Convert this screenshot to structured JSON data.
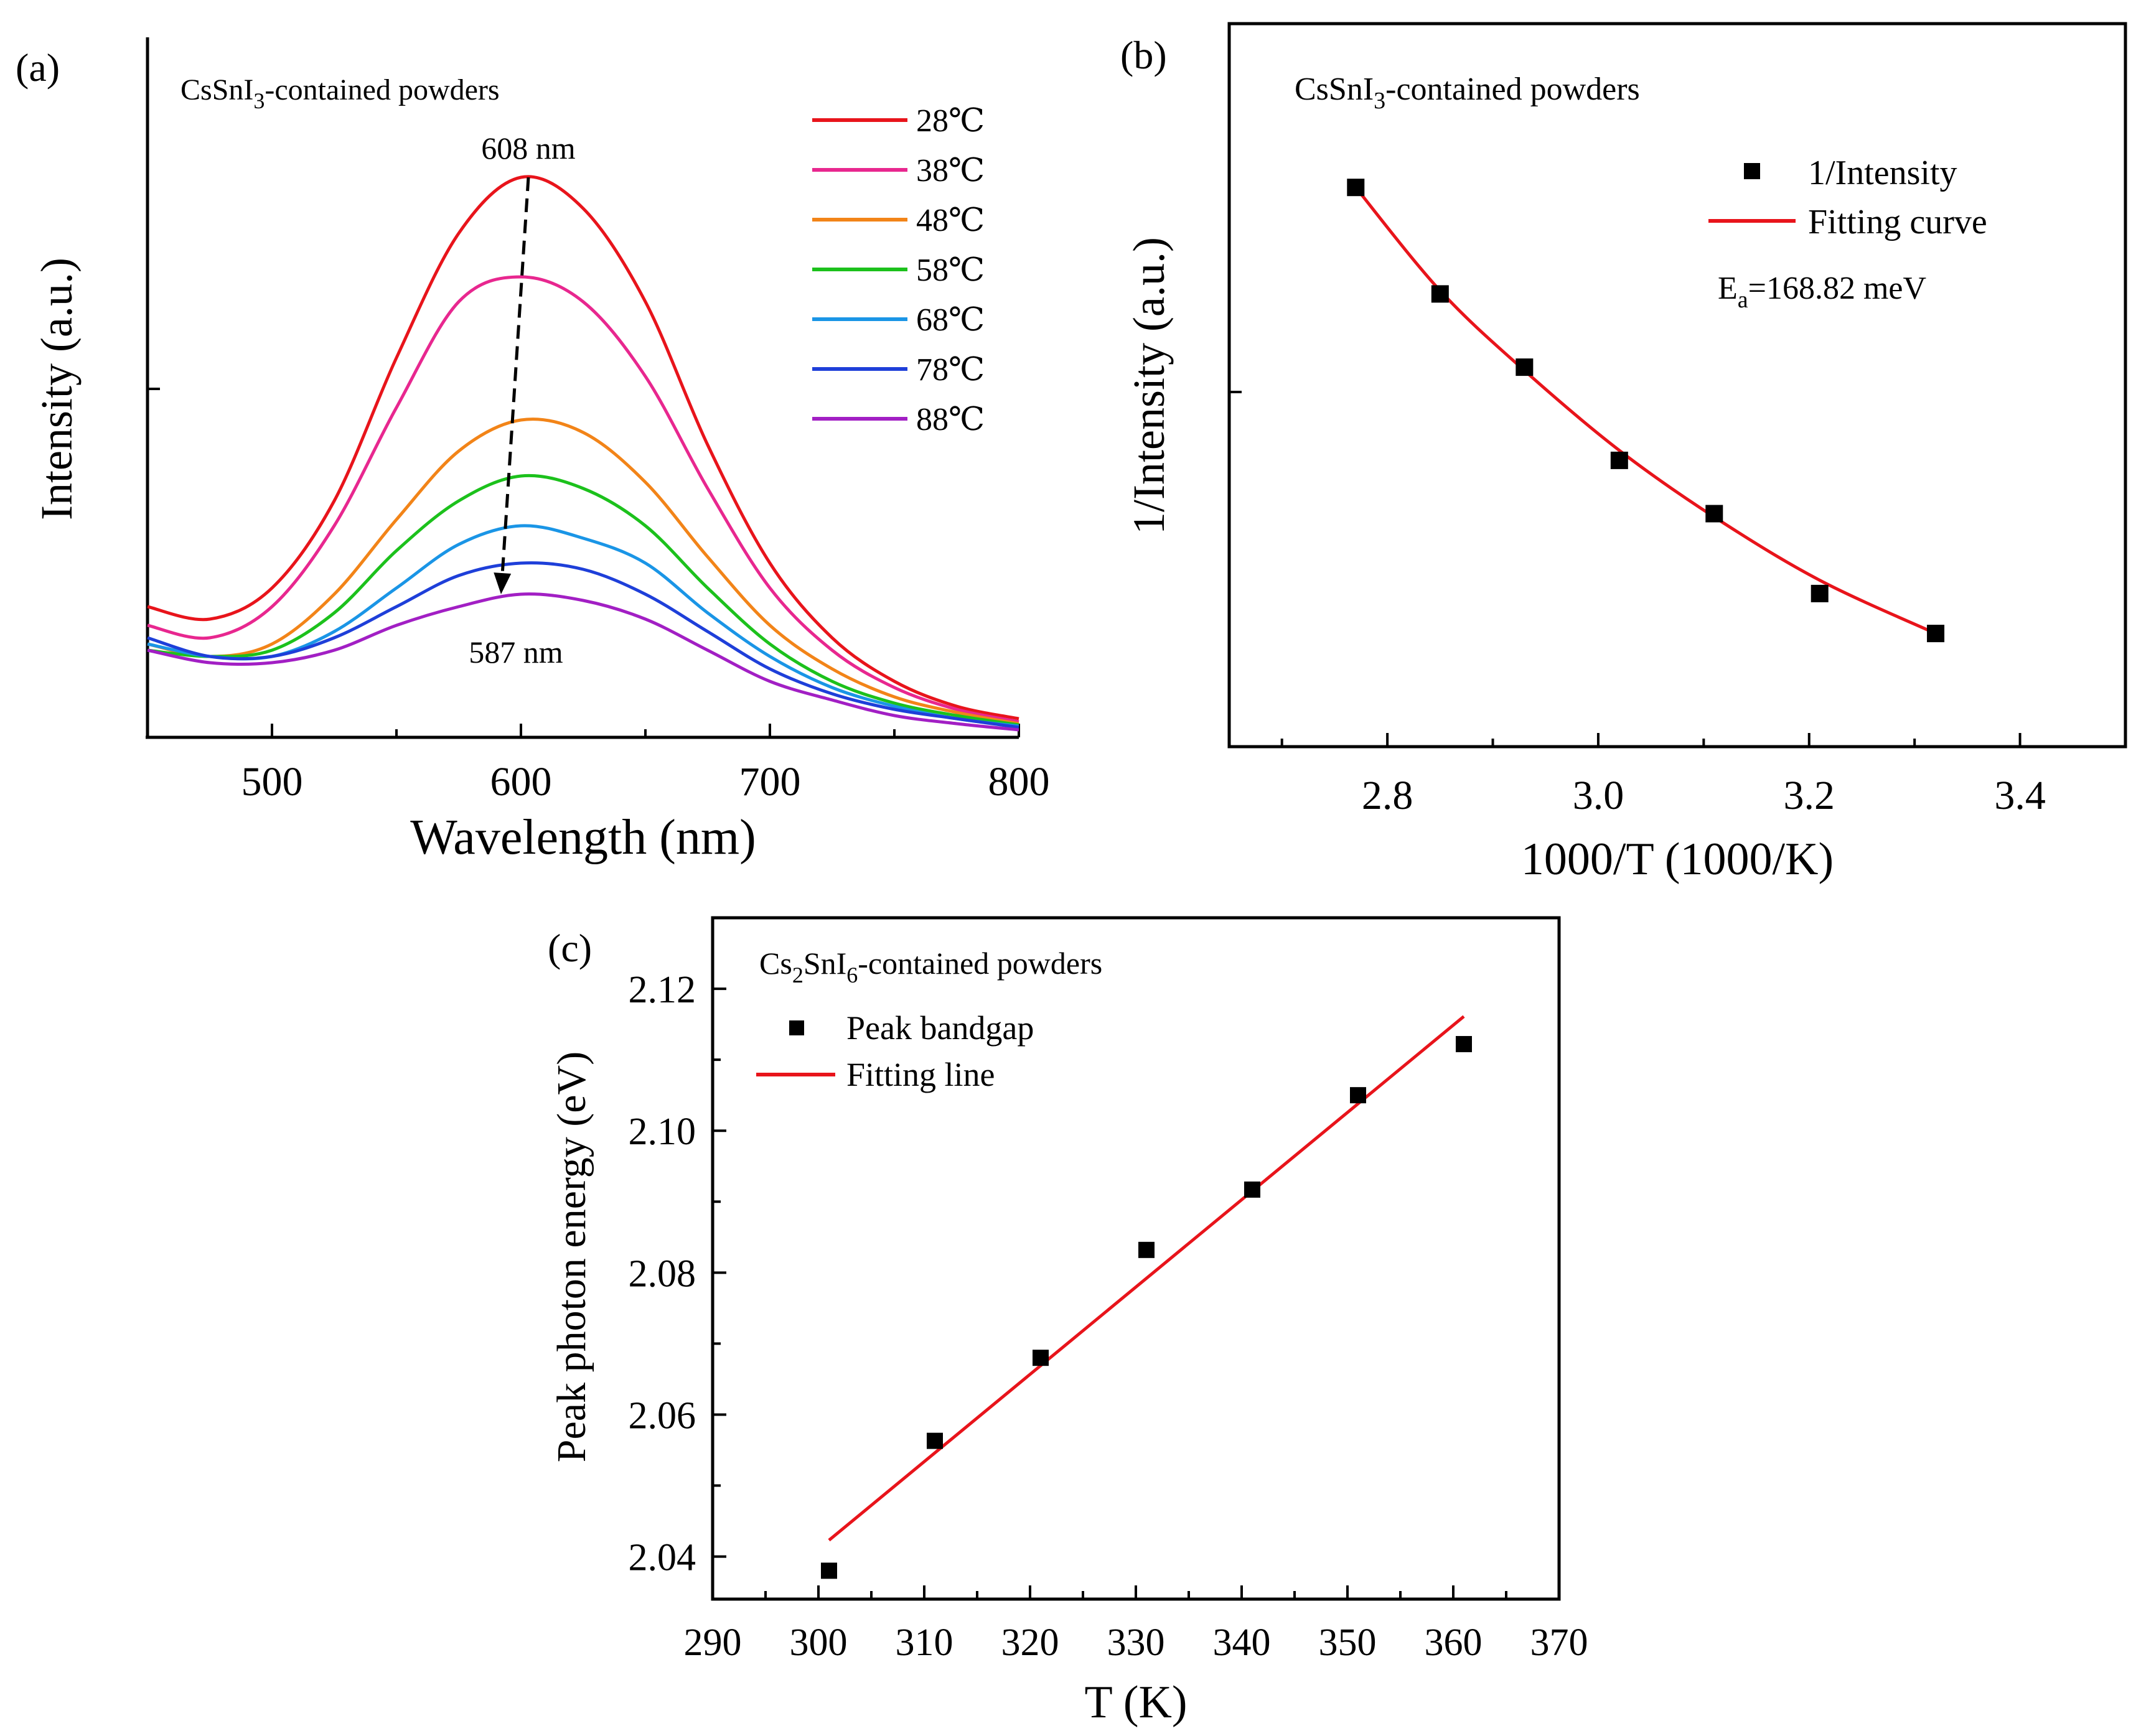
{
  "chart_data": [
    {
      "panel": "(a)",
      "type": "line",
      "title": "CsSnI3-contained powders",
      "title_main": "CsSnI",
      "title_sub": "3",
      "title_rest": "-contained powders",
      "xlabel": "Wavelength (nm)",
      "ylabel": "Intensity (a.u.)",
      "xlim": [
        450,
        800
      ],
      "ylim": [
        0,
        1.0
      ],
      "xticks": [
        500,
        600,
        700,
        800
      ],
      "x": [
        450,
        475,
        500,
        525,
        550,
        575,
        600,
        625,
        650,
        675,
        700,
        725,
        750,
        775,
        800
      ],
      "series": [
        {
          "name": "28℃",
          "color": "#e8141b",
          "values": [
            0.21,
            0.19,
            0.24,
            0.38,
            0.61,
            0.81,
            0.9,
            0.85,
            0.7,
            0.47,
            0.28,
            0.16,
            0.09,
            0.05,
            0.03
          ]
        },
        {
          "name": "38℃",
          "color": "#e8278f",
          "values": [
            0.18,
            0.16,
            0.21,
            0.34,
            0.53,
            0.7,
            0.74,
            0.7,
            0.58,
            0.4,
            0.24,
            0.14,
            0.08,
            0.045,
            0.025
          ]
        },
        {
          "name": "48℃",
          "color": "#f28418",
          "values": [
            0.15,
            0.13,
            0.15,
            0.23,
            0.35,
            0.46,
            0.51,
            0.49,
            0.41,
            0.29,
            0.18,
            0.11,
            0.065,
            0.04,
            0.022
          ]
        },
        {
          "name": "58℃",
          "color": "#1cc11c",
          "values": [
            0.14,
            0.13,
            0.14,
            0.2,
            0.3,
            0.38,
            0.42,
            0.4,
            0.34,
            0.24,
            0.15,
            0.09,
            0.055,
            0.035,
            0.02
          ]
        },
        {
          "name": "68℃",
          "color": "#1a95e6",
          "values": [
            0.15,
            0.13,
            0.13,
            0.17,
            0.24,
            0.31,
            0.34,
            0.32,
            0.28,
            0.2,
            0.13,
            0.08,
            0.05,
            0.03,
            0.018
          ]
        },
        {
          "name": "78℃",
          "color": "#1e3fd9",
          "values": [
            0.16,
            0.13,
            0.13,
            0.16,
            0.21,
            0.26,
            0.28,
            0.27,
            0.23,
            0.17,
            0.11,
            0.07,
            0.045,
            0.03,
            0.016
          ]
        },
        {
          "name": "88℃",
          "color": "#a21fc4",
          "values": [
            0.14,
            0.12,
            0.12,
            0.14,
            0.18,
            0.21,
            0.23,
            0.22,
            0.19,
            0.14,
            0.09,
            0.06,
            0.035,
            0.022,
            0.012
          ]
        }
      ],
      "annotations": [
        {
          "text": "608 nm",
          "x": 603,
          "y": 0.93
        },
        {
          "text": "587 nm",
          "x": 598,
          "y": 0.16
        }
      ],
      "arrow": {
        "from": [
          603,
          0.9
        ],
        "to": [
          592,
          0.23
        ]
      }
    },
    {
      "panel": "(b)",
      "type": "scatter",
      "title": "CsSnI3-contained powders",
      "title_main": "CsSnI",
      "title_sub": "3",
      "title_rest": "-contained powders",
      "xlabel": "1000/T (1000/K)",
      "ylabel": "1/Intensity (a.u.)",
      "xlim": [
        2.65,
        3.5
      ],
      "ylim": [
        0,
        1.0
      ],
      "xticks": [
        2.8,
        3.0,
        3.2,
        3.4
      ],
      "xtick_labels": [
        "2.8",
        "3.0",
        "3.2",
        "3.4"
      ],
      "series": [
        {
          "name": "1/Intensity",
          "x": [
            2.77,
            2.85,
            2.93,
            3.02,
            3.11,
            3.21,
            3.32
          ],
          "values": [
            0.84,
            0.68,
            0.57,
            0.43,
            0.35,
            0.23,
            0.17
          ]
        }
      ],
      "fit": {
        "name": "Fitting curve",
        "color": "#e8141b",
        "x": [
          2.77,
          2.85,
          2.93,
          3.02,
          3.11,
          3.21,
          3.32
        ],
        "values": [
          0.84,
          0.685,
          0.565,
          0.445,
          0.345,
          0.25,
          0.17
        ]
      },
      "annotation_main": "E",
      "annotation_sub": "a",
      "annotation_rest": "=168.82 meV"
    },
    {
      "panel": "(c)",
      "type": "scatter",
      "title": "Cs2SnI6-contained powders",
      "title_parts": [
        "Cs",
        "2",
        "SnI",
        "6",
        "-contained powders"
      ],
      "xlabel": "T (K)",
      "ylabel": "Peak photon energy (eV)",
      "xlim": [
        290,
        370
      ],
      "ylim": [
        2.034,
        2.13
      ],
      "xticks": [
        290,
        300,
        310,
        320,
        330,
        340,
        350,
        360,
        370
      ],
      "yticks": [
        2.04,
        2.06,
        2.08,
        2.1,
        2.12
      ],
      "ytick_labels": [
        "2.04",
        "2.06",
        "2.08",
        "2.10",
        "2.12"
      ],
      "series": [
        {
          "name": "Peak bandgap",
          "x": [
            301,
            311,
            321,
            331,
            341,
            351,
            361
          ],
          "values": [
            2.038,
            2.0563,
            2.068,
            2.0832,
            2.0917,
            2.105,
            2.1122
          ]
        }
      ],
      "fit": {
        "name": "Fitting line",
        "color": "#e8141b",
        "x": [
          301,
          361
        ],
        "values": [
          2.0423,
          2.1161
        ]
      }
    }
  ]
}
